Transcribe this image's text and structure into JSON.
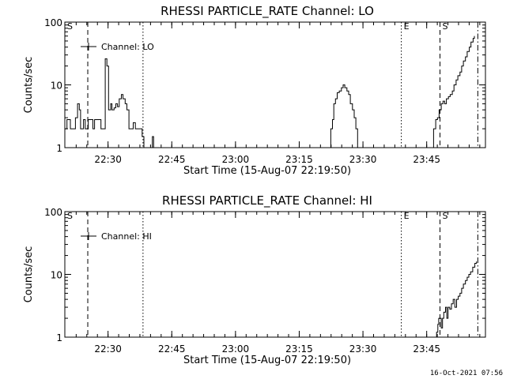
{
  "footer": "16-Oct-2021 07:56",
  "chart_data": [
    {
      "type": "line",
      "title": "RHESSI PARTICLE_RATE Channel: LO",
      "xlabel": "Start Time (15-Aug-07 22:19:50)",
      "ylabel": "Counts/sec",
      "yscale": "log",
      "ylim": [
        1,
        100
      ],
      "xlim_min": [
        0,
        99
      ],
      "yticks": [
        {
          "value": 1,
          "label": "1"
        },
        {
          "value": 10,
          "label": "10"
        },
        {
          "value": 100,
          "label": "100"
        }
      ],
      "xticks": [
        {
          "value": 10.17,
          "label": "22:30"
        },
        {
          "value": 25.17,
          "label": "22:45"
        },
        {
          "value": 40.17,
          "label": "23:00"
        },
        {
          "value": 55.17,
          "label": "23:15"
        },
        {
          "value": 70.17,
          "label": "23:30"
        },
        {
          "value": 85.17,
          "label": "23:45"
        }
      ],
      "legend": {
        "label": "Channel: LO",
        "position": "top-left"
      },
      "markers": [
        {
          "x": 0.0,
          "style": "dashed",
          "label": "S"
        },
        {
          "x": 5.4,
          "style": "dashed",
          "label": ""
        },
        {
          "x": 18.4,
          "style": "dotted",
          "label": ""
        },
        {
          "x": 79.2,
          "style": "dotted",
          "label": "E"
        },
        {
          "x": 88.3,
          "style": "dashed",
          "label": "S"
        },
        {
          "x": 97.2,
          "style": "dashdot",
          "label": ""
        }
      ],
      "series": [
        {
          "segments": [
            [
              [
                0,
                2
              ],
              [
                0.5,
                2.8
              ],
              [
                1,
                2.8
              ],
              [
                1.3,
                2
              ],
              [
                2,
                2
              ],
              [
                2.5,
                3
              ],
              [
                3,
                5
              ],
              [
                3.4,
                4
              ],
              [
                3.7,
                2
              ],
              [
                4.2,
                2
              ],
              [
                4.4,
                2.8
              ],
              [
                4.8,
                2
              ],
              [
                5.2,
                2
              ],
              [
                5.5,
                2.8
              ],
              [
                6,
                2.8
              ],
              [
                6.6,
                2
              ],
              [
                7,
                2.8
              ],
              [
                8.2,
                2.8
              ],
              [
                8.5,
                2
              ],
              [
                9.3,
                2
              ],
              [
                9.5,
                26
              ],
              [
                9.9,
                20
              ],
              [
                10.3,
                4
              ],
              [
                10.8,
                5
              ],
              [
                11.1,
                4
              ],
              [
                11.6,
                4.3
              ],
              [
                12,
                5
              ],
              [
                12.4,
                4.5
              ],
              [
                12.8,
                6
              ],
              [
                13.3,
                7
              ],
              [
                13.7,
                6
              ],
              [
                14.2,
                5
              ],
              [
                14.6,
                4
              ],
              [
                15.1,
                2
              ],
              [
                15.6,
                2
              ],
              [
                16.1,
                2.5
              ],
              [
                16.6,
                2
              ],
              [
                17.5,
                2
              ],
              [
                18.2,
                1.5
              ],
              [
                18.6,
                1
              ]
            ],
            [
              [
                20.4,
                1
              ],
              [
                20.6,
                1.5
              ],
              [
                20.9,
                1
              ]
            ],
            [
              [
                62.2,
                1
              ],
              [
                62.6,
                2
              ],
              [
                63,
                2.8
              ],
              [
                63.3,
                5
              ],
              [
                63.7,
                6
              ],
              [
                64.1,
                7.5
              ],
              [
                64.6,
                8
              ],
              [
                65.1,
                9
              ],
              [
                65.5,
                10
              ],
              [
                65.9,
                9
              ],
              [
                66.4,
                8
              ],
              [
                66.8,
                7
              ],
              [
                67.2,
                5
              ],
              [
                67.7,
                4
              ],
              [
                68.1,
                3
              ],
              [
                68.5,
                2
              ],
              [
                68.9,
                1
              ]
            ],
            [
              [
                86.4,
                1
              ],
              [
                86.8,
                2
              ],
              [
                87.3,
                2.8
              ],
              [
                87.7,
                3
              ],
              [
                88.1,
                4
              ],
              [
                88.6,
                5
              ],
              [
                89,
                5.5
              ],
              [
                89.4,
                5
              ],
              [
                89.8,
                6
              ],
              [
                90.3,
                6.5
              ],
              [
                90.7,
                7
              ],
              [
                91.2,
                8
              ],
              [
                91.6,
                10
              ],
              [
                92.1,
                12
              ],
              [
                92.5,
                14
              ],
              [
                93,
                16
              ],
              [
                93.4,
                20
              ],
              [
                93.8,
                24
              ],
              [
                94.3,
                28
              ],
              [
                94.7,
                34
              ],
              [
                95.2,
                40
              ],
              [
                95.6,
                48
              ],
              [
                96.1,
                55
              ],
              [
                96.4,
                60
              ]
            ]
          ]
        }
      ]
    },
    {
      "type": "line",
      "title": "RHESSI PARTICLE_RATE Channel: HI",
      "xlabel": "Start Time (15-Aug-07 22:19:50)",
      "ylabel": "Counts/sec",
      "yscale": "log",
      "ylim": [
        1,
        100
      ],
      "xlim_min": [
        0,
        99
      ],
      "yticks": [
        {
          "value": 1,
          "label": "1"
        },
        {
          "value": 10,
          "label": "10"
        },
        {
          "value": 100,
          "label": "100"
        }
      ],
      "xticks": [
        {
          "value": 10.17,
          "label": "22:30"
        },
        {
          "value": 25.17,
          "label": "22:45"
        },
        {
          "value": 40.17,
          "label": "23:00"
        },
        {
          "value": 55.17,
          "label": "23:15"
        },
        {
          "value": 70.17,
          "label": "23:30"
        },
        {
          "value": 85.17,
          "label": "23:45"
        }
      ],
      "legend": {
        "label": "Channel: HI",
        "position": "top-left"
      },
      "markers": [
        {
          "x": 0.0,
          "style": "dashed",
          "label": "S"
        },
        {
          "x": 5.4,
          "style": "dashed",
          "label": ""
        },
        {
          "x": 18.4,
          "style": "dotted",
          "label": ""
        },
        {
          "x": 79.2,
          "style": "dotted",
          "label": "E"
        },
        {
          "x": 88.3,
          "style": "dashed",
          "label": "S"
        },
        {
          "x": 97.2,
          "style": "dashdot",
          "label": ""
        }
      ],
      "series": [
        {
          "segments": [
            [
              [
                87.3,
                1
              ],
              [
                87.5,
                1.2
              ],
              [
                87.8,
                1.6
              ],
              [
                88,
                2
              ],
              [
                88.3,
                2
              ],
              [
                88.6,
                1.4
              ],
              [
                88.9,
                2
              ],
              [
                89.2,
                2.5
              ],
              [
                89.6,
                3
              ],
              [
                89.9,
                2
              ],
              [
                90.2,
                3
              ],
              [
                90.6,
                2.8
              ],
              [
                91,
                3.4
              ],
              [
                91.4,
                4
              ],
              [
                91.8,
                3
              ],
              [
                92.2,
                4
              ],
              [
                92.6,
                4.5
              ],
              [
                93,
                5
              ],
              [
                93.4,
                6
              ],
              [
                93.8,
                7
              ],
              [
                94.3,
                8
              ],
              [
                94.7,
                9
              ],
              [
                95.1,
                10
              ],
              [
                95.5,
                11
              ],
              [
                96,
                13
              ],
              [
                96.5,
                15
              ],
              [
                96.9,
                16
              ]
            ]
          ]
        }
      ]
    }
  ]
}
